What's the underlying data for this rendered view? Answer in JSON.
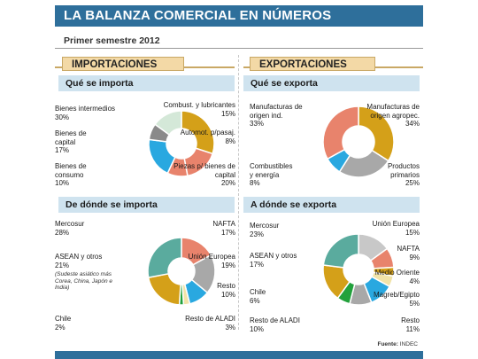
{
  "header": {
    "title": "LA BALANZA COMERCIAL EN NÚMEROS",
    "subtitle": "Primer semestre 2012"
  },
  "sections": {
    "imports_label": "IMPORTACIONES",
    "exports_label": "EXPORTACIONES"
  },
  "panels": {
    "imports_what": "Qué se importa",
    "exports_what": "Qué se exporta",
    "imports_where": "De dónde se importa",
    "exports_where": "A dónde se exporta"
  },
  "colors": {
    "title_bar": "#2e6f9b",
    "section_tab": "#f3d9a6",
    "panel_head": "#cfe3ef",
    "mustard": "#d4a019",
    "salmon": "#e8836c",
    "sky": "#29a8e0",
    "gray": "#a8a8a8",
    "dark_gray": "#8a8a8a",
    "pale_green": "#d4e8d8",
    "teal": "#5aab9e",
    "light_gray": "#c8c8c8",
    "green": "#22a13c",
    "light_yellow": "#f1e3a8"
  },
  "chart_data": [
    {
      "type": "pie",
      "title": "Qué se importa",
      "slices": [
        {
          "label": "Bienes intermedios",
          "value": 30,
          "text": "30%",
          "color": "#d4a019"
        },
        {
          "label": "Bienes de capital",
          "value": 17,
          "text": "17%",
          "color": "#e8836c"
        },
        {
          "label": "Bienes de consumo",
          "value": 10,
          "text": "10%",
          "color": "#e8836c"
        },
        {
          "label": "Piezas p/ bienes de capital",
          "value": 20,
          "text": "20%",
          "color": "#29a8e0"
        },
        {
          "label": "Automot. p/pasaj.",
          "value": 8,
          "text": "8%",
          "color": "#8a8a8a"
        },
        {
          "label": "Combust. y lubricantes",
          "value": 15,
          "text": "15%",
          "color": "#d4e8d8"
        }
      ]
    },
    {
      "type": "pie",
      "title": "Qué se exporta",
      "slices": [
        {
          "label": "Manufacturas de origen agropec.",
          "value": 34,
          "text": "34%",
          "color": "#d4a019"
        },
        {
          "label": "Productos primarios",
          "value": 25,
          "text": "25%",
          "color": "#a8a8a8"
        },
        {
          "label": "Combustibles y energía",
          "value": 8,
          "text": "8%",
          "color": "#29a8e0"
        },
        {
          "label": "Manufacturas de origen ind.",
          "value": 33,
          "text": "33%",
          "color": "#e8836c"
        }
      ]
    },
    {
      "type": "pie",
      "title": "De dónde se importa",
      "slices": [
        {
          "label": "NAFTA",
          "value": 17,
          "text": "17%",
          "color": "#e8836c"
        },
        {
          "label": "Unión Europea",
          "value": 19,
          "text": "19%",
          "color": "#a8a8a8"
        },
        {
          "label": "Resto",
          "value": 10,
          "text": "10%",
          "color": "#29a8e0"
        },
        {
          "label": "Resto de ALADI",
          "value": 3,
          "text": "3%",
          "color": "#f1e3a8"
        },
        {
          "label": "Chile",
          "value": 2,
          "text": "2%",
          "color": "#22a13c"
        },
        {
          "label": "ASEAN y otros",
          "value": 21,
          "text": "21%",
          "color": "#d4a019",
          "note": "(Sudeste asiático más Corea, China, Japón e India)"
        },
        {
          "label": "Mercosur",
          "value": 28,
          "text": "28%",
          "color": "#5aab9e"
        }
      ]
    },
    {
      "type": "pie",
      "title": "A dónde se exporta",
      "slices": [
        {
          "label": "Unión Europea",
          "value": 15,
          "text": "15%",
          "color": "#c8c8c8"
        },
        {
          "label": "NAFTA",
          "value": 9,
          "text": "9%",
          "color": "#e8836c"
        },
        {
          "label": "Medio Oriente",
          "value": 4,
          "text": "4%",
          "color": "#d4a019"
        },
        {
          "label": "Magreb/Egipto",
          "value": 5,
          "text": "5%",
          "color": "#f1e3a8"
        },
        {
          "label": "Resto",
          "value": 11,
          "text": "11%",
          "color": "#29a8e0"
        },
        {
          "label": "Resto de ALADI",
          "value": 10,
          "text": "10%",
          "color": "#a8a8a8"
        },
        {
          "label": "Chile",
          "value": 6,
          "text": "6%",
          "color": "#22a13c"
        },
        {
          "label": "ASEAN y otros",
          "value": 17,
          "text": "17%",
          "color": "#d4a019"
        },
        {
          "label": "Mercosur",
          "value": 23,
          "text": "23%",
          "color": "#5aab9e"
        }
      ]
    }
  ],
  "source": {
    "label": "Fuente:",
    "value": "INDEC"
  }
}
